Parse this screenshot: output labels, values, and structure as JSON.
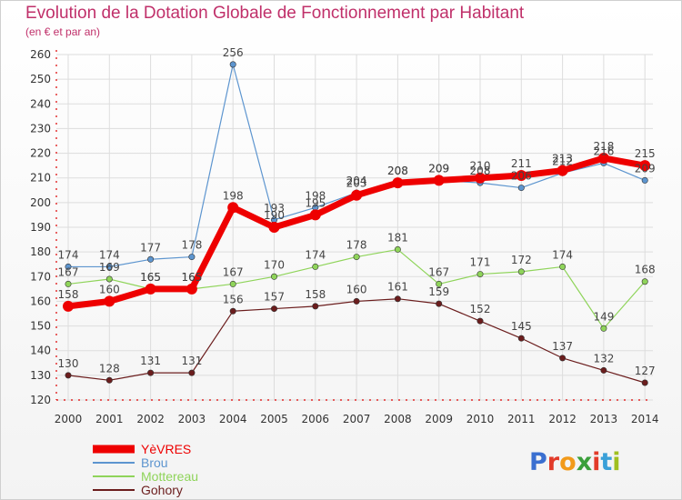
{
  "chart_data": {
    "type": "line",
    "title": "Evolution de la Dotation Globale de Fonctionnement par Habitant",
    "subtitle": "(en € et par an)",
    "xlabel": "",
    "ylabel": "",
    "ylim": [
      120,
      260
    ],
    "yticks": [
      120,
      130,
      140,
      150,
      160,
      170,
      180,
      190,
      200,
      210,
      220,
      230,
      240,
      250,
      260
    ],
    "grid": true,
    "legend_position": "bottom-left",
    "x": [
      "2000",
      "2001",
      "2002",
      "2003",
      "2004",
      "2005",
      "2006",
      "2007",
      "2008",
      "2009",
      "2010",
      "2011",
      "2012",
      "2013",
      "2014"
    ],
    "series": [
      {
        "name": "Brou",
        "color": "#5d95cf",
        "values": [
          174,
          174,
          177,
          178,
          256,
          193,
          198,
          204,
          208,
          209,
          208,
          206,
          212,
          216,
          209
        ]
      },
      {
        "name": "Mottereau",
        "color": "#8fd45a",
        "values": [
          167,
          169,
          165,
          165,
          167,
          170,
          174,
          178,
          181,
          167,
          171,
          172,
          174,
          149,
          168
        ]
      },
      {
        "name": "Gohory",
        "color": "#6b1d1d",
        "values": [
          130,
          128,
          131,
          131,
          156,
          157,
          158,
          160,
          161,
          159,
          152,
          145,
          137,
          132,
          127
        ]
      },
      {
        "name": "YèVRES",
        "color": "#ee0000",
        "values": [
          158,
          160,
          165,
          165,
          198,
          190,
          195,
          203,
          208,
          209,
          210,
          211,
          213,
          218,
          215
        ]
      }
    ],
    "legend_order": [
      "YèVRES",
      "Brou",
      "Mottereau",
      "Gohory"
    ]
  },
  "logo_text": "Proxiti",
  "colors": {
    "title": "#c0306a",
    "axis": "#dd0000",
    "grid": "#dddddd"
  }
}
